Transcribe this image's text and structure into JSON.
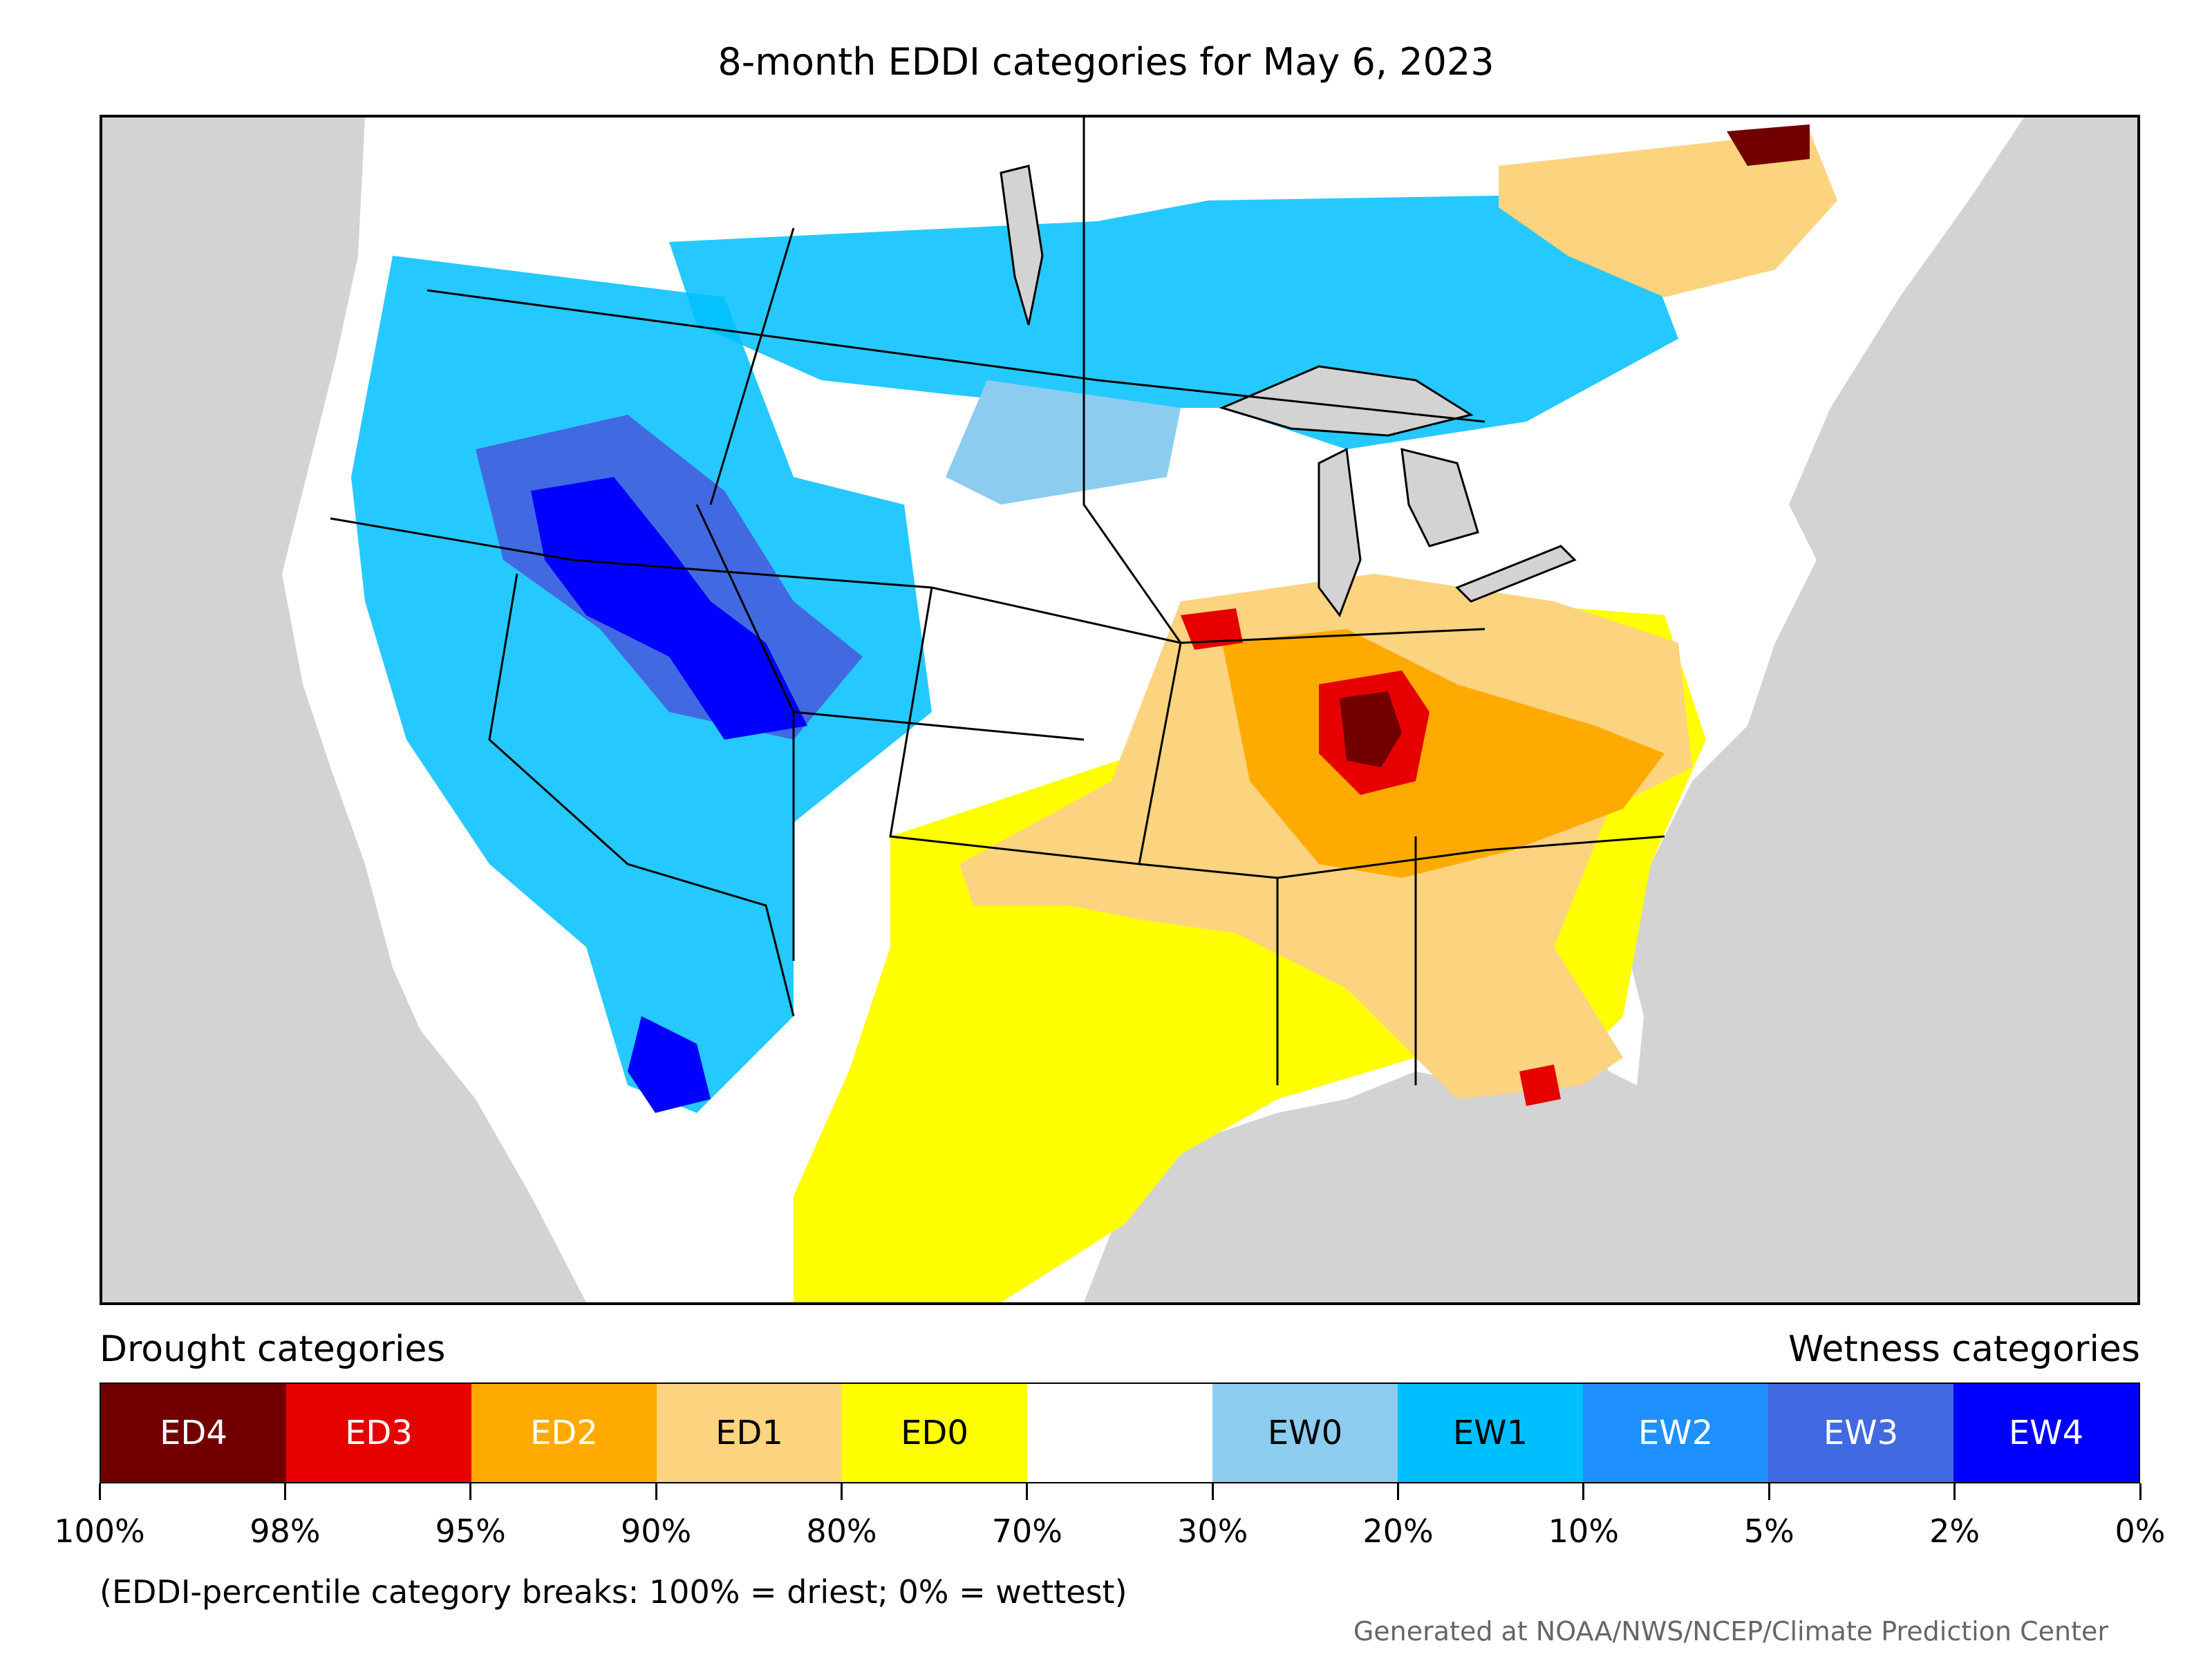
{
  "title": "8-month EDDI categories for May 6, 2023",
  "legend": {
    "left_label": "Drought categories",
    "right_label": "Wetness categories",
    "categories": [
      {
        "label": "ED4",
        "color": "#730000",
        "text_color": "#ffffff"
      },
      {
        "label": "ED3",
        "color": "#e60000",
        "text_color": "#ffffff"
      },
      {
        "label": "ED2",
        "color": "#ffaa00",
        "text_color": "#ffffff"
      },
      {
        "label": "ED1",
        "color": "#fcd37f",
        "text_color": "#000000"
      },
      {
        "label": "ED0",
        "color": "#ffff00",
        "text_color": "#000000"
      },
      {
        "label": "",
        "color": "#ffffff",
        "text_color": "#000000"
      },
      {
        "label": "EW0",
        "color": "#8ccdef",
        "text_color": "#000000"
      },
      {
        "label": "EW1",
        "color": "#00bfff",
        "text_color": "#000000"
      },
      {
        "label": "EW2",
        "color": "#1e90ff",
        "text_color": "#ffffff"
      },
      {
        "label": "EW3",
        "color": "#4169e1",
        "text_color": "#ffffff"
      },
      {
        "label": "EW4",
        "color": "#0000ff",
        "text_color": "#ffffff"
      }
    ],
    "breaks": [
      "100%",
      "98%",
      "95%",
      "90%",
      "80%",
      "70%",
      "30%",
      "20%",
      "10%",
      "5%",
      "2%",
      "0%"
    ]
  },
  "note": "(EDDI-percentile category breaks: 100% = driest; 0% = wettest)",
  "credit": "Generated at NOAA/NWS/NCEP/Climate Prediction Center",
  "colors": {
    "ocean": "#d3d3d3",
    "lakes": "#d3d3d3",
    "land": "#ffffff",
    "border": "#000000"
  }
}
